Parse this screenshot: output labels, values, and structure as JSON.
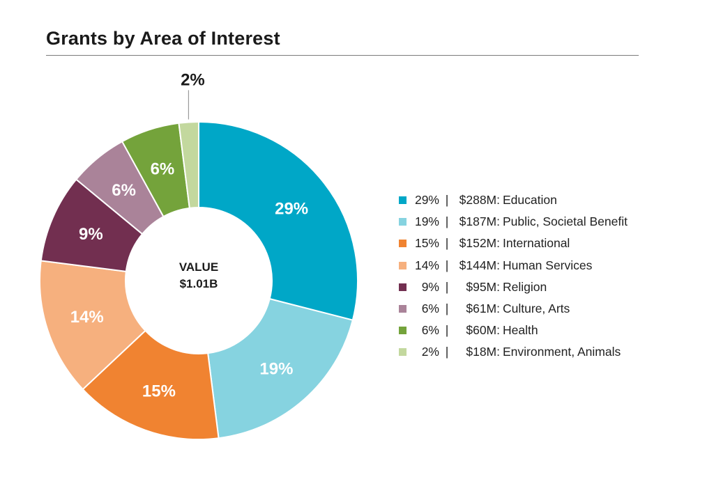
{
  "title": "Grants by Area of Interest",
  "chart_data": {
    "type": "donut",
    "title": "Grants by Area of Interest",
    "center_label": [
      "VALUE",
      "$1.01B"
    ],
    "separator": "|",
    "slices": [
      {
        "name": "Education",
        "percent": 29,
        "label": "29%",
        "amount": "$288M",
        "color": "#00a7c7"
      },
      {
        "name": "Public, Societal Benefit",
        "percent": 19,
        "label": "19%",
        "amount": "$187M",
        "color": "#86d3e0"
      },
      {
        "name": "International",
        "percent": 15,
        "label": "15%",
        "amount": "$152M",
        "color": "#f08331"
      },
      {
        "name": "Human Services",
        "percent": 14,
        "label": "14%",
        "amount": "$144M",
        "color": "#f6b07e"
      },
      {
        "name": "Religion",
        "percent": 9,
        "label": "9%",
        "amount": "$95M",
        "color": "#722f50"
      },
      {
        "name": "Culture, Arts",
        "percent": 6,
        "label": "6%",
        "amount": "$61M",
        "color": "#aa8399"
      },
      {
        "name": "Health",
        "percent": 6,
        "label": "6%",
        "amount": "$60M",
        "color": "#74a33b"
      },
      {
        "name": "Environment, Animals",
        "percent": 2,
        "label": "2%",
        "amount": "$18M",
        "color": "#c3d89e"
      }
    ],
    "legend_placement": "right"
  }
}
